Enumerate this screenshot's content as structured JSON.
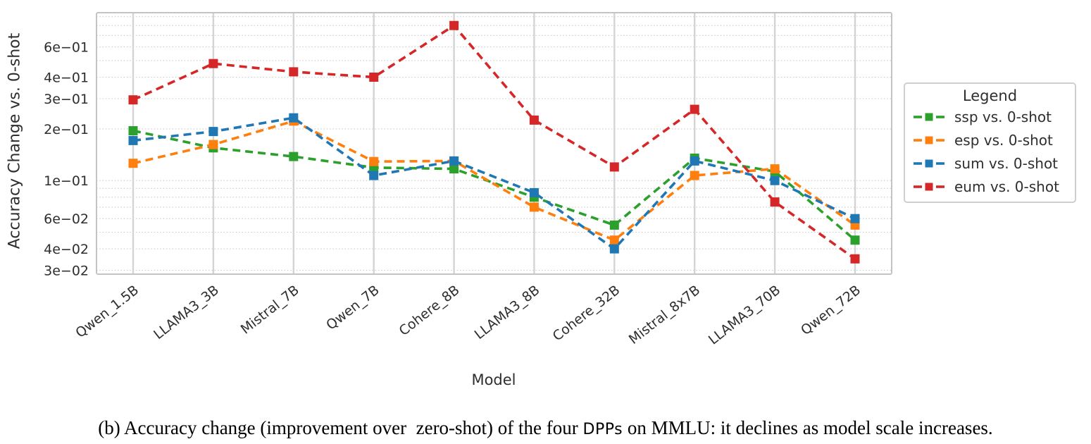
{
  "page": {
    "background": "#ffffff"
  },
  "chart_data": {
    "type": "line",
    "title": "",
    "xlabel": "Model",
    "ylabel": "Accuracy Change vs. 0-shot",
    "yscale": "log",
    "ylim": [
      0.0285,
      0.95
    ],
    "grid": true,
    "legend": {
      "title": "Legend",
      "position": "right"
    },
    "categories": [
      "Qwen_1.5B",
      "LLAMA3_3B",
      "Mistral_7B",
      "Qwen_7B",
      "Cohere_8B",
      "LLAMA3_8B",
      "Cohere_32B",
      "Mistral_8x7B",
      "LLAMA3_70B",
      "Qwen_72B"
    ],
    "y_ticks": [
      {
        "label": "6e−01",
        "value": 0.6
      },
      {
        "label": "4e−01",
        "value": 0.4
      },
      {
        "label": "3e−01",
        "value": 0.3
      },
      {
        "label": "2e−01",
        "value": 0.2
      },
      {
        "label": "1e−01",
        "value": 0.1
      },
      {
        "label": "6e−02",
        "value": 0.06
      },
      {
        "label": "4e−02",
        "value": 0.04
      },
      {
        "label": "3e−02",
        "value": 0.03
      }
    ],
    "y_minor_gridlines": [
      0.9,
      0.8,
      0.7,
      0.5,
      0.09,
      0.08,
      0.07,
      0.05
    ],
    "series": [
      {
        "name": "ssp vs. 0-shot",
        "color": "#2ca02c",
        "marker": "square",
        "linestyle": "dashed",
        "values": [
          0.195,
          0.155,
          0.138,
          0.119,
          0.117,
          0.08,
          0.055,
          0.135,
          0.113,
          0.045
        ]
      },
      {
        "name": "esp vs. 0-shot",
        "color": "#ff7f0e",
        "marker": "square",
        "linestyle": "dashed",
        "values": [
          0.126,
          0.162,
          0.222,
          0.129,
          0.13,
          0.07,
          0.045,
          0.107,
          0.117,
          0.055
        ]
      },
      {
        "name": "sum vs. 0-shot",
        "color": "#1f77b4",
        "marker": "square",
        "linestyle": "dashed",
        "values": [
          0.171,
          0.193,
          0.232,
          0.107,
          0.13,
          0.085,
          0.04,
          0.13,
          0.1,
          0.06
        ]
      },
      {
        "name": "eum vs. 0-shot",
        "color": "#d62728",
        "marker": "square",
        "linestyle": "dashed",
        "values": [
          0.295,
          0.48,
          0.43,
          0.4,
          0.8,
          0.225,
          0.12,
          0.26,
          0.075,
          0.035
        ]
      }
    ]
  },
  "caption": {
    "prefix": "(b) Accuracy change (improvement over  zero-shot) of the four ",
    "acronym": "DPPs",
    "suffix": " on MMLU: it declines as model scale increases."
  }
}
